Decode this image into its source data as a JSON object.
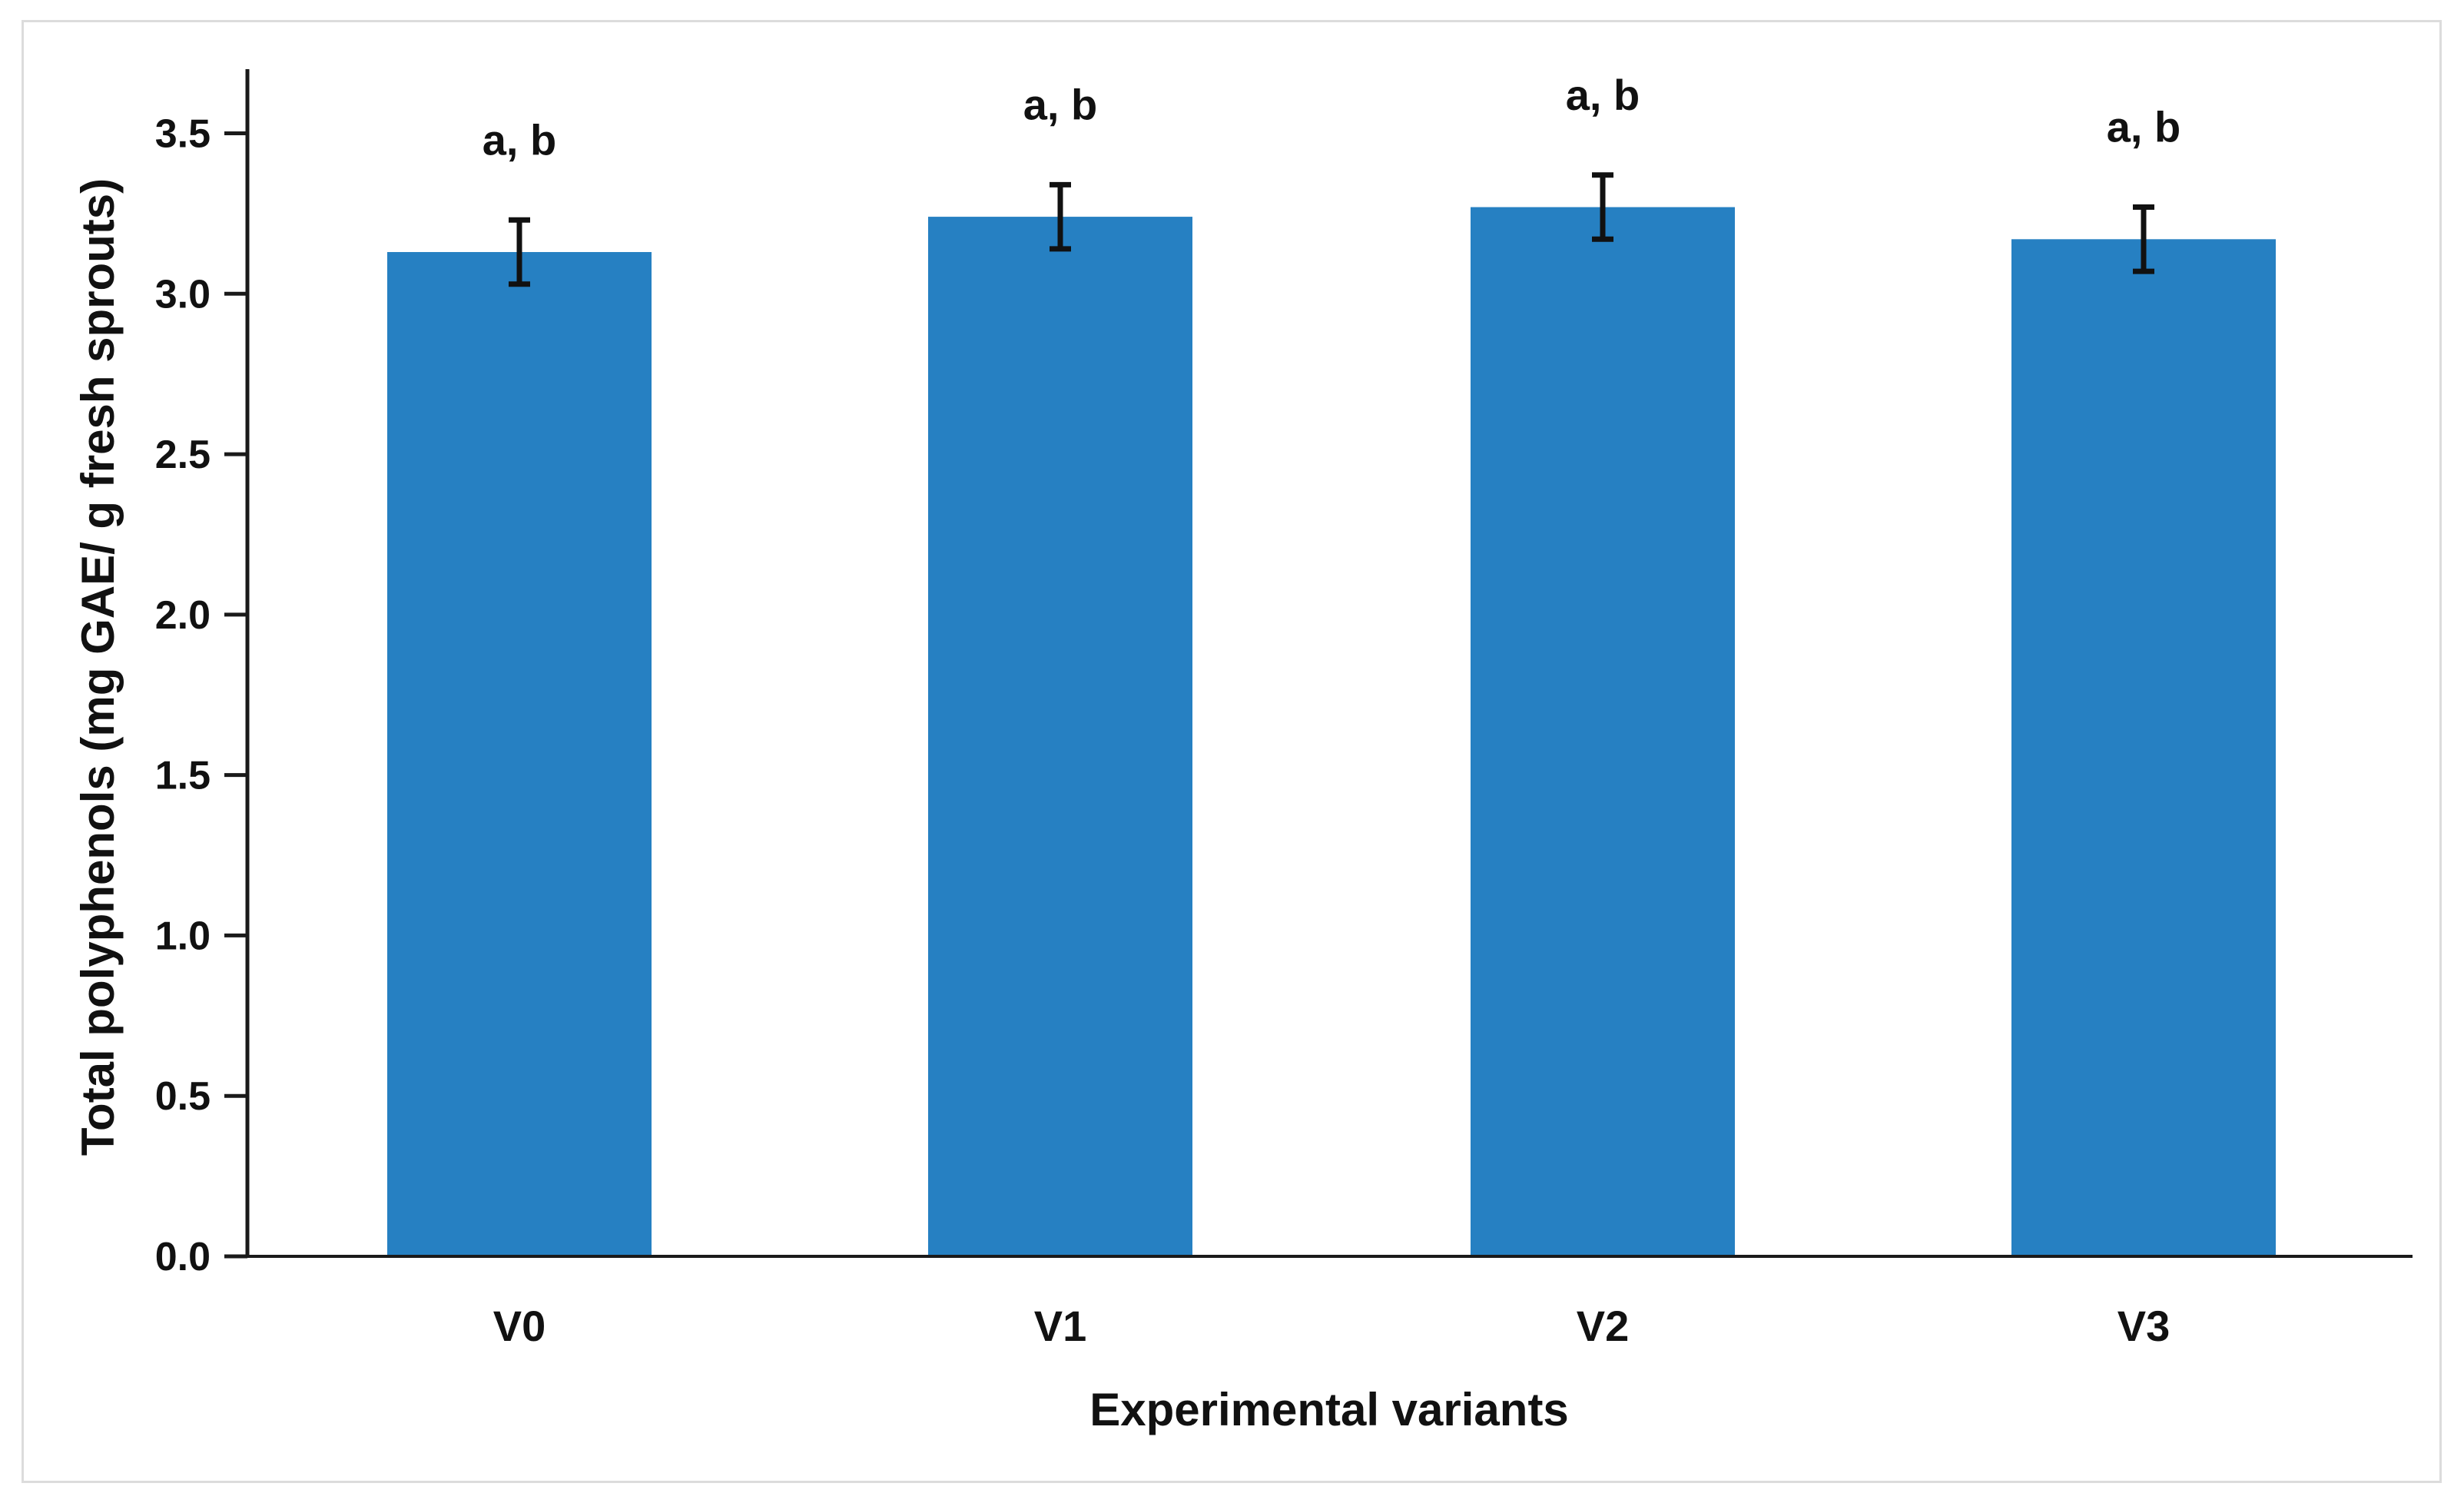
{
  "chart_data": {
    "type": "bar",
    "title": "",
    "xlabel": "Experimental variants",
    "ylabel": "Total polyphenols (mg GAE/  g fresh sprouts)",
    "categories": [
      "V0",
      "V1",
      "V2",
      "V3"
    ],
    "values": [
      3.13,
      3.24,
      3.27,
      3.17
    ],
    "errors": [
      0.1,
      0.1,
      0.1,
      0.1
    ],
    "significance": [
      "a, b",
      "a, b",
      "a, b",
      "a, b"
    ],
    "ylim": [
      0,
      3.7
    ],
    "yticks": [
      0.0,
      0.5,
      1.0,
      1.5,
      2.0,
      2.5,
      3.0,
      3.5
    ],
    "ytick_labels": [
      "0.0",
      "0.5",
      "1.0",
      "1.5",
      "2.0",
      "2.5",
      "3.0",
      "3.5"
    ],
    "grid": false,
    "colors": {
      "bar": "#2680c2",
      "axis": "#1a1a1a",
      "error": "#111111"
    }
  }
}
